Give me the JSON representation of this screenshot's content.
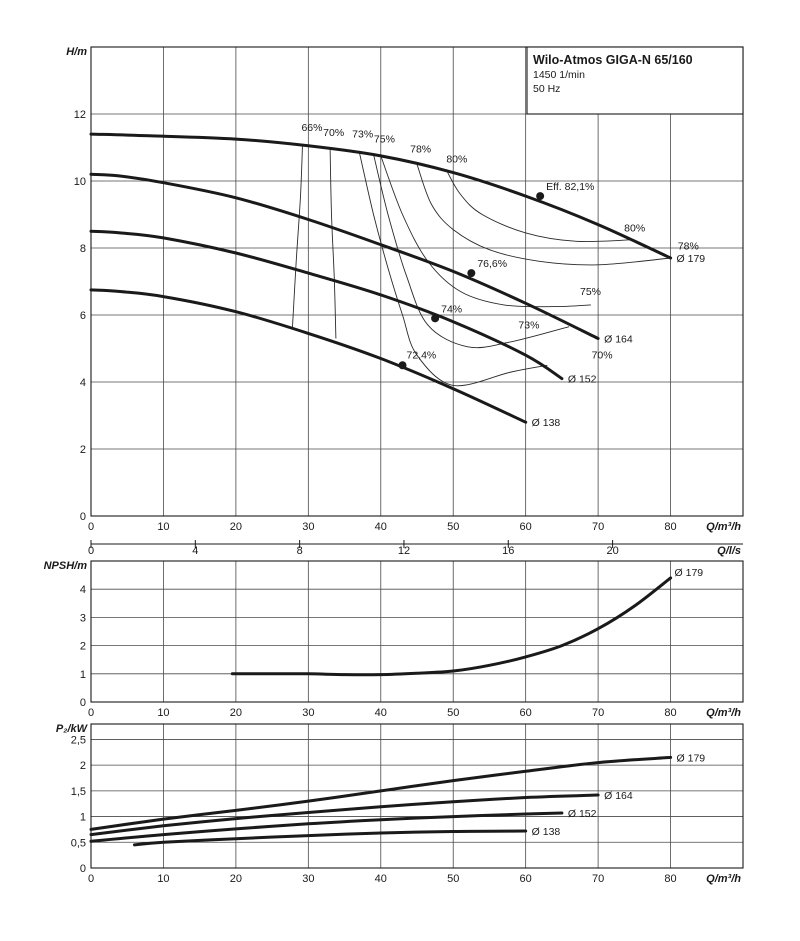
{
  "title_box": {
    "title": "Wilo-Atmos GIGA-N 65/160",
    "speed": "1450 1/min",
    "frequency": "50 Hz"
  },
  "colors": {
    "curve": "#1a1a1a",
    "grid": "#4a4a4a"
  },
  "chart_data": [
    {
      "type": "line",
      "ylabel": "H/m",
      "xlabel": "Q/m³/h",
      "xlim": [
        0,
        90
      ],
      "ylim": [
        0,
        14
      ],
      "xticks": [
        0,
        10,
        20,
        30,
        40,
        50,
        60,
        70,
        80
      ],
      "yticks": [
        0,
        2,
        4,
        6,
        8,
        10,
        12
      ],
      "secondary_x": {
        "label": "Q/l/s",
        "ticks": [
          0,
          4,
          8,
          12,
          16,
          20
        ],
        "scale": 3.6
      },
      "series": [
        {
          "name": "Ø 179",
          "points": [
            [
              0,
              11.4
            ],
            [
              8,
              11.35
            ],
            [
              20,
              11.25
            ],
            [
              30,
              11.05
            ],
            [
              40,
              10.75
            ],
            [
              50,
              10.25
            ],
            [
              60,
              9.55
            ],
            [
              70,
              8.7
            ],
            [
              80,
              7.7
            ]
          ]
        },
        {
          "name": "Ø 164",
          "points": [
            [
              0,
              10.2
            ],
            [
              4,
              10.15
            ],
            [
              10,
              9.95
            ],
            [
              20,
              9.5
            ],
            [
              30,
              8.85
            ],
            [
              40,
              8.1
            ],
            [
              50,
              7.3
            ],
            [
              60,
              6.35
            ],
            [
              70,
              5.3
            ]
          ]
        },
        {
          "name": "Ø 152",
          "points": [
            [
              0,
              8.5
            ],
            [
              4,
              8.45
            ],
            [
              10,
              8.3
            ],
            [
              20,
              7.85
            ],
            [
              30,
              7.25
            ],
            [
              40,
              6.6
            ],
            [
              50,
              5.8
            ],
            [
              60,
              4.8
            ],
            [
              65,
              4.1
            ]
          ]
        },
        {
          "name": "Ø 138",
          "points": [
            [
              0,
              6.75
            ],
            [
              4,
              6.7
            ],
            [
              10,
              6.55
            ],
            [
              20,
              6.1
            ],
            [
              30,
              5.45
            ],
            [
              40,
              4.7
            ],
            [
              50,
              3.8
            ],
            [
              60,
              2.8
            ]
          ]
        }
      ],
      "efficiency_points": [
        {
          "label": "Eff. 82,1%",
          "q": 62,
          "h": 9.55
        },
        {
          "label": "76,6%",
          "q": 52.5,
          "h": 7.25
        },
        {
          "label": "74%",
          "q": 47.5,
          "h": 5.9
        },
        {
          "label": "72,4%",
          "q": 43,
          "h": 4.5
        }
      ],
      "iso_efficiency": [
        {
          "label": "66%",
          "points": [
            [
              29.2,
              11.1
            ],
            [
              28.9,
              9.5
            ],
            [
              28.3,
              7.5
            ],
            [
              27.8,
              5.6
            ]
          ]
        },
        {
          "label": "70%",
          "points": [
            [
              33,
              11.0
            ],
            [
              33.2,
              9.0
            ],
            [
              33.6,
              7.0
            ],
            [
              33.8,
              5.3
            ]
          ]
        },
        {
          "label": "70%",
          "points": [
            [
              37,
              10.9
            ],
            [
              39,
              9.0
            ],
            [
              41,
              7.4
            ],
            [
              43,
              6.0
            ],
            [
              45,
              4.8
            ],
            [
              50,
              3.9
            ],
            [
              58,
              4.3
            ],
            [
              63,
              4.5
            ]
          ]
        },
        {
          "label": "73%",
          "points": [
            [
              39,
              10.8
            ],
            [
              41,
              9.0
            ],
            [
              43.5,
              7.2
            ],
            [
              46.5,
              5.7
            ],
            [
              52,
              5.05
            ],
            [
              58,
              5.2
            ],
            [
              66,
              5.65
            ]
          ]
        },
        {
          "label": "75%",
          "points": [
            [
              40,
              10.75
            ],
            [
              43,
              9.0
            ],
            [
              46.5,
              7.6
            ],
            [
              51,
              6.7
            ],
            [
              57,
              6.3
            ],
            [
              64,
              6.25
            ],
            [
              69,
              6.3
            ]
          ]
        },
        {
          "label": "78%",
          "points": [
            [
              45,
              10.5
            ],
            [
              47,
              9.3
            ],
            [
              50,
              8.55
            ],
            [
              55,
              7.95
            ],
            [
              62,
              7.6
            ],
            [
              70,
              7.5
            ],
            [
              80,
              7.7
            ]
          ]
        },
        {
          "label": "80%",
          "points": [
            [
              49,
              10.35
            ],
            [
              51,
              9.6
            ],
            [
              54,
              9.0
            ],
            [
              60,
              8.45
            ],
            [
              67,
              8.2
            ],
            [
              75,
              8.25
            ]
          ]
        }
      ]
    },
    {
      "type": "line",
      "ylabel": "NPSH/m",
      "xlabel": "Q/m³/h",
      "xlim": [
        0,
        90
      ],
      "ylim": [
        0,
        5
      ],
      "xticks": [
        0,
        10,
        20,
        30,
        40,
        50,
        60,
        70,
        80
      ],
      "yticks": [
        0,
        1,
        2,
        3,
        4
      ],
      "series": [
        {
          "name": "Ø 179",
          "points": [
            [
              19.5,
              1.0
            ],
            [
              25,
              1.0
            ],
            [
              30,
              1.0
            ],
            [
              35,
              0.97
            ],
            [
              40,
              0.97
            ],
            [
              45,
              1.02
            ],
            [
              50,
              1.1
            ],
            [
              55,
              1.3
            ],
            [
              60,
              1.6
            ],
            [
              65,
              2.0
            ],
            [
              70,
              2.6
            ],
            [
              75,
              3.4
            ],
            [
              80,
              4.4
            ]
          ]
        }
      ]
    },
    {
      "type": "line",
      "ylabel": "P₂/kW",
      "xlabel": "Q/m³/h",
      "xlim": [
        0,
        90
      ],
      "ylim": [
        0,
        2.8
      ],
      "xticks": [
        0,
        10,
        20,
        30,
        40,
        50,
        60,
        70,
        80
      ],
      "yticks": [
        0,
        0.5,
        1,
        1.5,
        2,
        2.5
      ],
      "ytick_labels": [
        "0",
        "0,5",
        "1",
        "1,5",
        "2",
        "2,5"
      ],
      "series": [
        {
          "name": "Ø 179",
          "points": [
            [
              0,
              0.75
            ],
            [
              10,
              0.95
            ],
            [
              20,
              1.12
            ],
            [
              30,
              1.3
            ],
            [
              40,
              1.5
            ],
            [
              50,
              1.7
            ],
            [
              60,
              1.88
            ],
            [
              70,
              2.05
            ],
            [
              80,
              2.15
            ]
          ]
        },
        {
          "name": "Ø 164",
          "points": [
            [
              0,
              0.65
            ],
            [
              10,
              0.82
            ],
            [
              20,
              0.96
            ],
            [
              30,
              1.08
            ],
            [
              40,
              1.19
            ],
            [
              50,
              1.29
            ],
            [
              60,
              1.37
            ],
            [
              70,
              1.42
            ]
          ]
        },
        {
          "name": "Ø 152",
          "points": [
            [
              0,
              0.52
            ],
            [
              10,
              0.65
            ],
            [
              20,
              0.76
            ],
            [
              30,
              0.86
            ],
            [
              40,
              0.94
            ],
            [
              50,
              1.0
            ],
            [
              60,
              1.05
            ],
            [
              65,
              1.07
            ]
          ]
        },
        {
          "name": "Ø 138",
          "points": [
            [
              6,
              0.45
            ],
            [
              10,
              0.5
            ],
            [
              20,
              0.57
            ],
            [
              30,
              0.63
            ],
            [
              40,
              0.68
            ],
            [
              50,
              0.71
            ],
            [
              60,
              0.72
            ]
          ]
        }
      ]
    }
  ]
}
